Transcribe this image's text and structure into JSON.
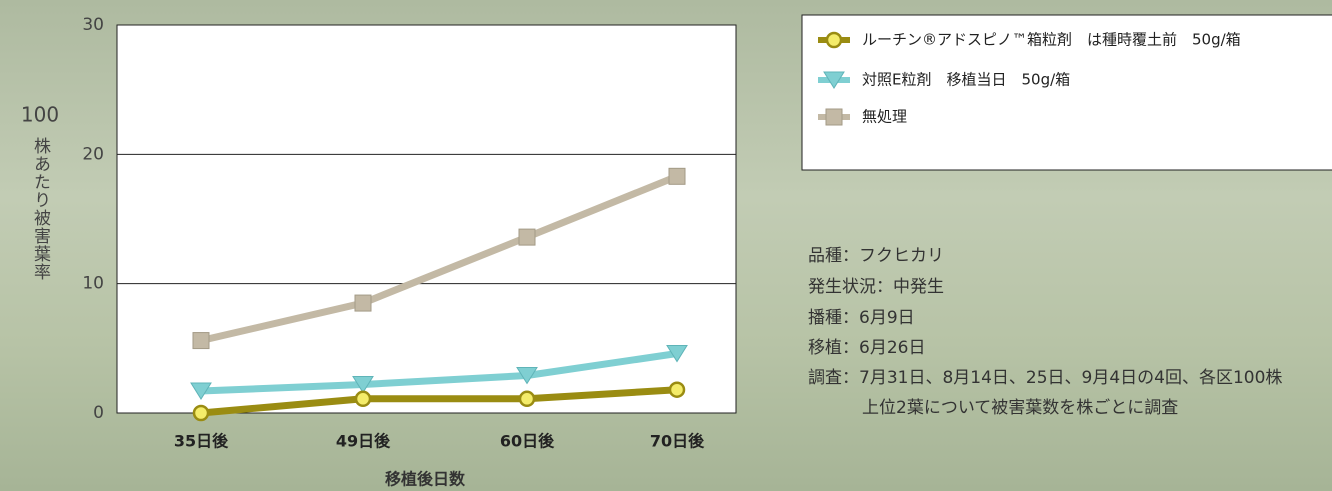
{
  "chart_data": {
    "type": "line",
    "ylabel": [
      "100",
      "株あたり被害葉率"
    ],
    "xlabel": "移植後日数",
    "categories": [
      "35日後",
      "49日後",
      "60日後",
      "70日後"
    ],
    "series": [
      {
        "name": "ルーチン®アドスピノ™箱粒剤　は種時覆土前　50g/箱",
        "color": "#9a8c12",
        "marker": "circle",
        "values": [
          0,
          1.1,
          1.1,
          1.8
        ]
      },
      {
        "name": "対照E粒剤　移植当日　50g/箱",
        "color": "#7fcfd2",
        "marker": "triangle-down",
        "values": [
          1.7,
          2.2,
          2.9,
          4.6
        ]
      },
      {
        "name": "無処理",
        "color": "#c3b9a5",
        "marker": "square",
        "values": [
          5.6,
          8.5,
          13.6,
          18.3
        ]
      }
    ],
    "ylim": [
      0,
      30
    ],
    "yticks": [
      0,
      10,
      20,
      30
    ],
    "grid": true,
    "notes": [
      "品種：フクヒカリ",
      "発生状況：中発生",
      "播種：6月9日",
      "移植：6月26日",
      "調査：7月31日、8月14日、25日、9月4日の4回、各区100株",
      "上位2葉について被害葉数を株ごとに調査"
    ]
  }
}
